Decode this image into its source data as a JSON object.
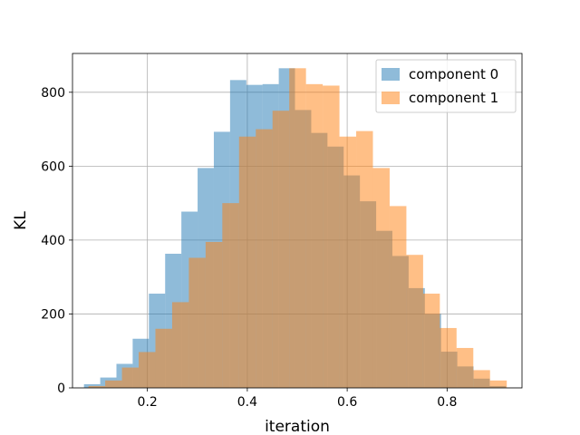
{
  "chart_data": {
    "type": "bar",
    "title": "",
    "xlabel": "iteration",
    "ylabel": "KL",
    "xlim": [
      0.05,
      0.95
    ],
    "ylim": [
      0,
      905
    ],
    "xticks": [
      0.2,
      0.4,
      0.6,
      0.8
    ],
    "xtick_labels": [
      "0.2",
      "0.4",
      "0.6",
      "0.8"
    ],
    "yticks": [
      0,
      200,
      400,
      600,
      800
    ],
    "ytick_labels": [
      "0",
      "200",
      "400",
      "600",
      "800"
    ],
    "grid": true,
    "legend_position": "top-right",
    "series": [
      {
        "name": "component 0",
        "color": "#1f77b4",
        "opacity": 0.5,
        "bin_edges": [
          0.073,
          0.1055,
          0.138,
          0.1705,
          0.203,
          0.2355,
          0.268,
          0.3005,
          0.333,
          0.3655,
          0.398,
          0.4305,
          0.463,
          0.4955,
          0.528,
          0.5605,
          0.593,
          0.6255,
          0.658,
          0.6905,
          0.723,
          0.7555,
          0.788,
          0.8205,
          0.853,
          0.8855,
          0.918
        ],
        "values": [
          10,
          28,
          65,
          133,
          255,
          363,
          477,
          595,
          693,
          833,
          820,
          822,
          865,
          752,
          690,
          653,
          575,
          505,
          425,
          357,
          270,
          200,
          98,
          58,
          25,
          5
        ]
      },
      {
        "name": "component 1",
        "color": "#ff7f0e",
        "opacity": 0.5,
        "bin_edges": [
          0.082,
          0.1155,
          0.149,
          0.1825,
          0.216,
          0.2495,
          0.283,
          0.3165,
          0.35,
          0.3835,
          0.417,
          0.4505,
          0.484,
          0.5175,
          0.551,
          0.5845,
          0.618,
          0.6515,
          0.685,
          0.7185,
          0.752,
          0.7855,
          0.819,
          0.8525,
          0.886,
          0.9195
        ],
        "values": [
          5,
          20,
          55,
          97,
          160,
          232,
          352,
          395,
          500,
          680,
          700,
          750,
          865,
          822,
          818,
          680,
          695,
          595,
          492,
          360,
          255,
          162,
          108,
          48,
          20
        ]
      }
    ]
  }
}
